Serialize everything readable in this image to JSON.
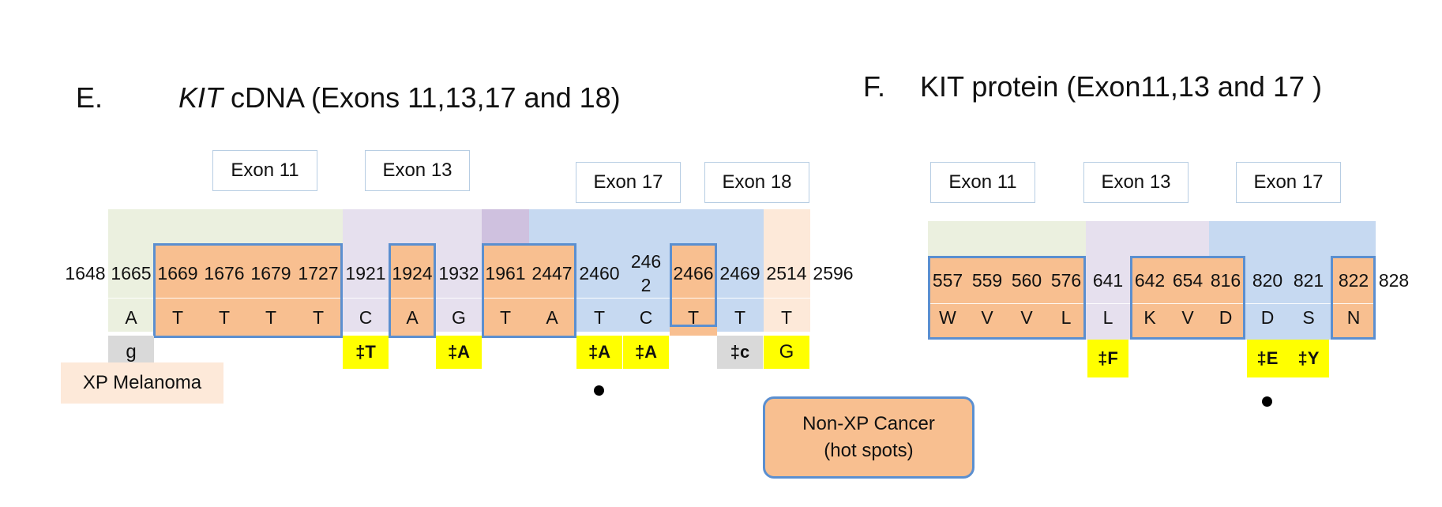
{
  "panelE": {
    "letter": "E.",
    "title_italic": "KIT",
    "title_rest": " cDNA (Exons 11,13,17 and 18)",
    "exons": [
      "Exon 11",
      "Exon 13",
      "Exon 17",
      "Exon 18"
    ],
    "positions": [
      "1648",
      "1665",
      "1669",
      "1676",
      "1679",
      "1727",
      "1921",
      "1924",
      "1932",
      "1961",
      "2447",
      "2460",
      "246",
      "2",
      "2466",
      "2469",
      "2514",
      "2596"
    ],
    "bases": [
      "A",
      "T",
      "T",
      "T",
      "T",
      "C",
      "A",
      "G",
      "T",
      "A",
      "T",
      "C",
      "T",
      "T",
      "T"
    ],
    "mutations": [
      "g",
      "‡T",
      "‡A",
      "‡A",
      "‡A",
      "‡c",
      "G"
    ],
    "xp_label": "XP Melanoma"
  },
  "panelF": {
    "letter": "F.",
    "title": "KIT protein (Exon11,13 and 17 )",
    "exons": [
      "Exon 11",
      "Exon 13",
      "Exon 17"
    ],
    "positions": [
      "557",
      "559",
      "560",
      "576",
      "641",
      "642",
      "654",
      "816",
      "820",
      "821",
      "822",
      "828"
    ],
    "aminoacids": [
      "W",
      "V",
      "V",
      "L",
      "L",
      "K",
      "V",
      "D",
      "D",
      "S",
      "N"
    ],
    "mutations": [
      "‡F",
      "‡E",
      "‡Y"
    ]
  },
  "legend": {
    "line1": "Non-XP Cancer",
    "line2": "(hot spots)"
  },
  "colors": {
    "exon11": "#ebf0df",
    "exon13": "#e6e0ee",
    "exon17": "#c6d9f1",
    "exon18": "#fde9d9",
    "hotspot": "#f8bf90",
    "hotspot_border": "#5b8fd0",
    "mutation_yellow": "#ffff00",
    "mutation_grey": "#d9d9d9"
  }
}
